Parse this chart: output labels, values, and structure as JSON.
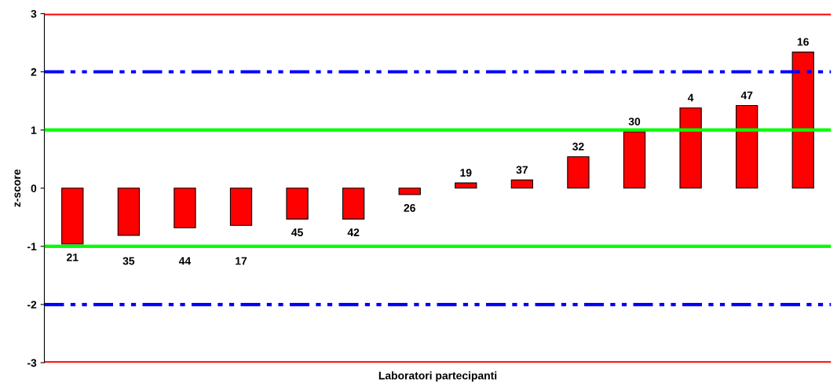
{
  "chart_data": {
    "type": "bar",
    "xlabel": "Laboratori partecipanti",
    "ylabel": "z-score",
    "categories": [
      "21",
      "35",
      "44",
      "17",
      "45",
      "42",
      "26",
      "19",
      "37",
      "32",
      "30",
      "4",
      "47",
      "16"
    ],
    "values": [
      -0.96,
      -0.81,
      -0.68,
      -0.64,
      -0.53,
      -0.53,
      -0.11,
      0.09,
      0.14,
      0.54,
      0.97,
      1.38,
      1.42,
      2.34
    ],
    "color": "#ff0000",
    "ylim": [
      -3,
      3
    ],
    "yticks": [
      {
        "value": -3,
        "label": "-3"
      },
      {
        "value": -2,
        "label": "-2"
      },
      {
        "value": -1,
        "label": "-1"
      },
      0,
      1,
      2,
      3
    ],
    "ref_lines": [
      {
        "axis": "y",
        "value": 3,
        "color": "#ff0000",
        "line_style": "solid"
      },
      {
        "axis": "y",
        "value": -3,
        "color": "#ff0000",
        "line_style": "solid"
      },
      {
        "axis": "y",
        "value": 2,
        "color": "#0000ff",
        "line_style": "dashdot"
      },
      {
        "axis": "y",
        "value": -2,
        "color": "#0000ff",
        "line_style": "dashdot"
      },
      {
        "axis": "y",
        "value": 1,
        "color": "#00ff00",
        "line_style": "solid"
      },
      {
        "axis": "y",
        "value": -1,
        "color": "#00ff00",
        "line_style": "solid"
      }
    ],
    "grid": false,
    "legend": false
  }
}
